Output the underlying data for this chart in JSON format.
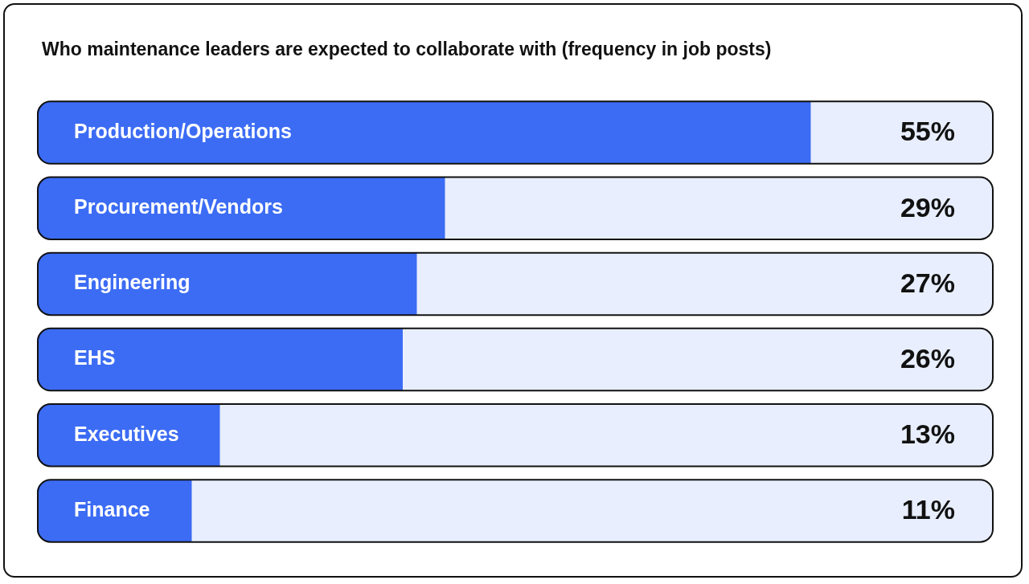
{
  "chart_data": {
    "type": "bar",
    "orientation": "horizontal",
    "title": "Who maintenance leaders are expected to collaborate with (frequency in job posts)",
    "categories": [
      "Production/Operations",
      "Procurement/Vendors",
      "Engineering",
      "EHS",
      "Executives",
      "Finance"
    ],
    "values": [
      55,
      29,
      27,
      26,
      13,
      11
    ],
    "value_labels": [
      "55%",
      "29%",
      "27%",
      "26%",
      "13%",
      "11%"
    ],
    "color": "#3c6cf4",
    "xlim": [
      0,
      68
    ],
    "legend": false
  }
}
